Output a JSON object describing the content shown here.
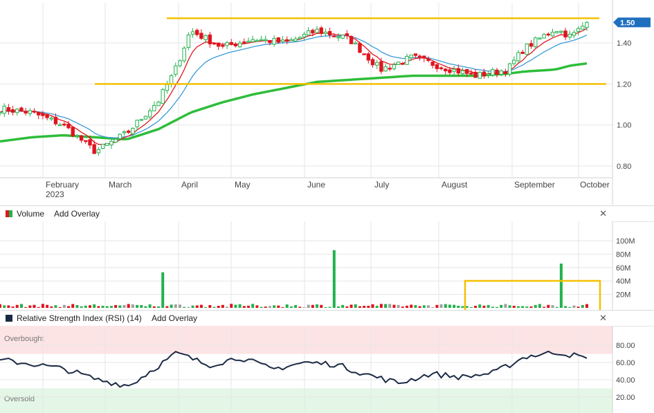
{
  "price_chart": {
    "x_labels": [
      "February",
      "March",
      "April",
      "May",
      "June",
      "July",
      "August",
      "September",
      "October"
    ],
    "x_year_label": "2023",
    "y_ticks": [
      "0.80",
      "1.00",
      "1.20",
      "1.40"
    ],
    "last_price_badge": "1.50",
    "badge_color": "#1f6fbf",
    "resistance_line": 1.52,
    "support_line": 1.2,
    "annotation_color": "#f5c000"
  },
  "volume_panel": {
    "title": "Volume",
    "add_overlay": "Add Overlay",
    "y_ticks": [
      "100M",
      "80M",
      "60M",
      "40M",
      "20M"
    ]
  },
  "rsi_panel": {
    "title": "Relative Strength Index (RSI) (14)",
    "add_overlay": "Add Overlay",
    "overbought_label": "Overbought",
    "oversold_label": "Oversold",
    "y_ticks": [
      "80.00",
      "60.00",
      "40.00",
      "20.00"
    ]
  },
  "colors": {
    "up": "#22b14c",
    "down": "#e0141e",
    "ma_short": "#e0141e",
    "ma_mid": "#3a9ad9",
    "ma_long": "#2ebd3a",
    "rsi": "#1b2a44"
  },
  "chart_data": [
    {
      "type": "line",
      "title": "",
      "y_range": [
        0.75,
        1.58
      ],
      "x": [
        "2023-01-17",
        "2023-01-31",
        "2023-02-14",
        "2023-02-28",
        "2023-03-14",
        "2023-03-28",
        "2023-04-04",
        "2023-04-11",
        "2023-04-25",
        "2023-05-09",
        "2023-05-23",
        "2023-06-06",
        "2023-06-20",
        "2023-07-04",
        "2023-07-18",
        "2023-08-01",
        "2023-08-15",
        "2023-08-29",
        "2023-09-05",
        "2023-09-19",
        "2023-09-26",
        "2023-10-03"
      ],
      "series": [
        {
          "values": [
            1.08,
            1.06,
            1.0,
            0.87,
            0.96,
            1.12,
            1.26,
            1.46,
            1.38,
            1.42,
            1.4,
            1.46,
            1.42,
            1.27,
            1.33,
            1.28,
            1.24,
            1.27,
            1.37,
            1.47,
            1.43,
            1.5
          ]
        },
        {
          "values": [
            0.92,
            0.94,
            0.95,
            0.94,
            0.93,
            0.98,
            1.02,
            1.06,
            1.11,
            1.15,
            1.18,
            1.21,
            1.22,
            1.23,
            1.24,
            1.24,
            1.24,
            1.25,
            1.26,
            1.27,
            1.29,
            1.3
          ]
        }
      ]
    },
    {
      "type": "bar",
      "title": "",
      "x_range": [
        "2023-01-17",
        "2023-10-03"
      ],
      "spikes": [
        {
          "x": "2023-03-29",
          "value": 53
        },
        {
          "x": "2023-06-13",
          "value": 86
        },
        {
          "x": "2023-09-21",
          "value": 66
        }
      ],
      "baseline_range": [
        1,
        6
      ],
      "ylim": [
        0,
        100
      ]
    },
    {
      "type": "line",
      "title": "",
      "ylim": [
        0,
        100
      ],
      "overbought": 70,
      "oversold": 30,
      "x": [
        "2023-01-17",
        "2023-02-01",
        "2023-02-15",
        "2023-03-01",
        "2023-03-15",
        "2023-04-05",
        "2023-04-19",
        "2023-05-03",
        "2023-05-17",
        "2023-05-31",
        "2023-06-14",
        "2023-06-28",
        "2023-07-12",
        "2023-07-26",
        "2023-08-09",
        "2023-08-23",
        "2023-09-06",
        "2023-09-20",
        "2023-10-03"
      ],
      "values": [
        63,
        58,
        52,
        40,
        33,
        71,
        57,
        66,
        52,
        60,
        58,
        46,
        36,
        47,
        43,
        48,
        67,
        72,
        65
      ]
    }
  ]
}
